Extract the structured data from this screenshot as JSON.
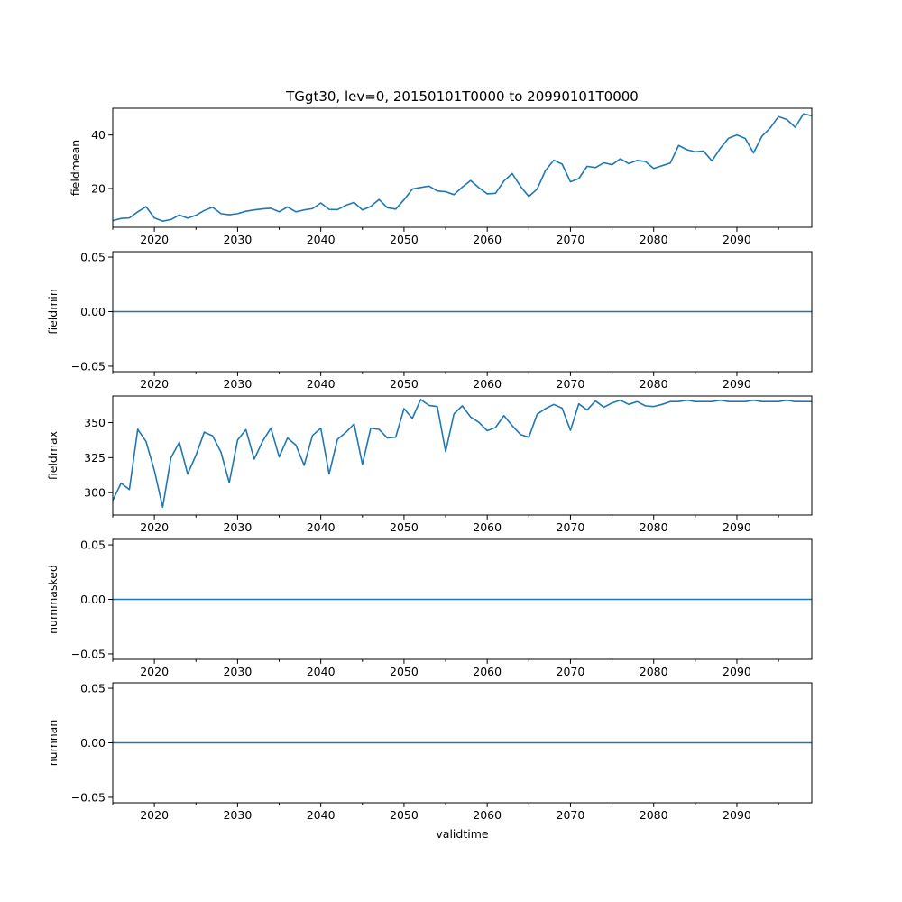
{
  "chart_data": {
    "type": "line",
    "title": "TGgt30, lev=0, 20150101T0000 to 20990101T0000",
    "xlabel": "validtime",
    "colors": {
      "series": "#1f77b4"
    },
    "x": [
      2015,
      2016,
      2017,
      2018,
      2019,
      2020,
      2021,
      2022,
      2023,
      2024,
      2025,
      2026,
      2027,
      2028,
      2029,
      2030,
      2031,
      2032,
      2033,
      2034,
      2035,
      2036,
      2037,
      2038,
      2039,
      2040,
      2041,
      2042,
      2043,
      2044,
      2045,
      2046,
      2047,
      2048,
      2049,
      2050,
      2051,
      2052,
      2053,
      2054,
      2055,
      2056,
      2057,
      2058,
      2059,
      2060,
      2061,
      2062,
      2063,
      2064,
      2065,
      2066,
      2067,
      2068,
      2069,
      2070,
      2071,
      2072,
      2073,
      2074,
      2075,
      2076,
      2077,
      2078,
      2079,
      2080,
      2081,
      2082,
      2083,
      2084,
      2085,
      2086,
      2087,
      2088,
      2089,
      2090,
      2091,
      2092,
      2093,
      2094,
      2095,
      2096,
      2097,
      2098,
      2099
    ],
    "xlim": [
      2015,
      2099
    ],
    "xticks": [
      "2020",
      "2030",
      "2040",
      "2050",
      "2060",
      "2070",
      "2080",
      "2090"
    ],
    "panels": [
      {
        "name": "fieldmean",
        "ylabel": "fieldmean",
        "ylim": [
          5.5,
          50
        ],
        "yticks": [
          "20",
          "40"
        ],
        "ytick_values": [
          20,
          40
        ],
        "values": [
          8.0,
          8.8,
          9.0,
          11.3,
          13.2,
          9.0,
          7.8,
          8.4,
          10.1,
          8.9,
          10.0,
          11.8,
          13.0,
          10.6,
          10.2,
          10.6,
          11.5,
          12.0,
          12.4,
          12.6,
          11.3,
          13.1,
          11.3,
          12.0,
          12.5,
          14.6,
          12.2,
          12.1,
          13.7,
          14.8,
          12.0,
          13.3,
          15.9,
          12.8,
          12.3,
          15.8,
          19.8,
          20.4,
          20.9,
          19.1,
          18.8,
          17.7,
          20.5,
          23.0,
          20.3,
          18.0,
          18.2,
          22.8,
          25.6,
          20.8,
          17.0,
          19.8,
          26.7,
          30.6,
          29.1,
          22.5,
          23.7,
          28.3,
          27.8,
          29.6,
          28.9,
          31.1,
          29.3,
          30.5,
          30.1,
          27.5,
          28.5,
          29.5,
          36.1,
          34.5,
          33.7,
          34.0,
          30.3,
          35.0,
          38.8,
          40.0,
          38.7,
          33.3,
          39.5,
          42.6,
          46.9,
          45.8,
          42.9,
          47.9,
          47.2
        ]
      },
      {
        "name": "fieldmin",
        "ylabel": "fieldmin",
        "ylim": [
          -0.055,
          0.055
        ],
        "yticks": [
          "0.05",
          "0.00",
          "−0.05"
        ],
        "ytick_values": [
          0.05,
          0.0,
          -0.05
        ],
        "constant": 0
      },
      {
        "name": "fieldmax",
        "ylabel": "fieldmax",
        "ylim": [
          284,
          369
        ],
        "yticks": [
          "350",
          "325",
          "300"
        ],
        "ytick_values": [
          350,
          325,
          300
        ],
        "values": [
          294.5,
          306.8,
          302.2,
          345.2,
          336.5,
          315.8,
          289.6,
          325.0,
          336.0,
          313.3,
          326.7,
          343.2,
          340.5,
          329.0,
          307.1,
          337.5,
          345.0,
          323.9,
          336.6,
          346.1,
          325.5,
          339.0,
          334.0,
          319.5,
          340.8,
          346.0,
          313.3,
          338.0,
          343.0,
          349.0,
          320.2,
          346.0,
          345.1,
          339.0,
          339.6,
          360.0,
          353.0,
          366.5,
          362.3,
          361.5,
          329.3,
          356.2,
          362.0,
          354.0,
          350.2,
          344.2,
          346.5,
          355.0,
          347.8,
          341.5,
          339.5,
          356.0,
          360.0,
          363.0,
          360.3,
          344.5,
          363.4,
          359.0,
          365.5,
          361.0,
          364.0,
          366.0,
          363.0,
          365.0,
          362.0,
          361.5,
          363.0,
          365.0,
          365.0,
          366.0,
          365.0,
          365.0,
          365.0,
          366.0,
          365.0,
          365.0,
          365.0,
          366.0,
          365.0,
          365.0,
          365.0,
          366.0,
          365.0,
          365.0,
          365.0
        ]
      },
      {
        "name": "nummasked",
        "ylabel": "nummasked",
        "ylim": [
          -0.055,
          0.055
        ],
        "yticks": [
          "0.05",
          "0.00",
          "−0.05"
        ],
        "ytick_values": [
          0.05,
          0.0,
          -0.05
        ],
        "constant": 0
      },
      {
        "name": "numnan",
        "ylabel": "numnan",
        "ylim": [
          -0.055,
          0.055
        ],
        "yticks": [
          "0.05",
          "0.00",
          "−0.05"
        ],
        "ytick_values": [
          0.05,
          0.0,
          -0.05
        ],
        "constant": 0
      }
    ]
  }
}
